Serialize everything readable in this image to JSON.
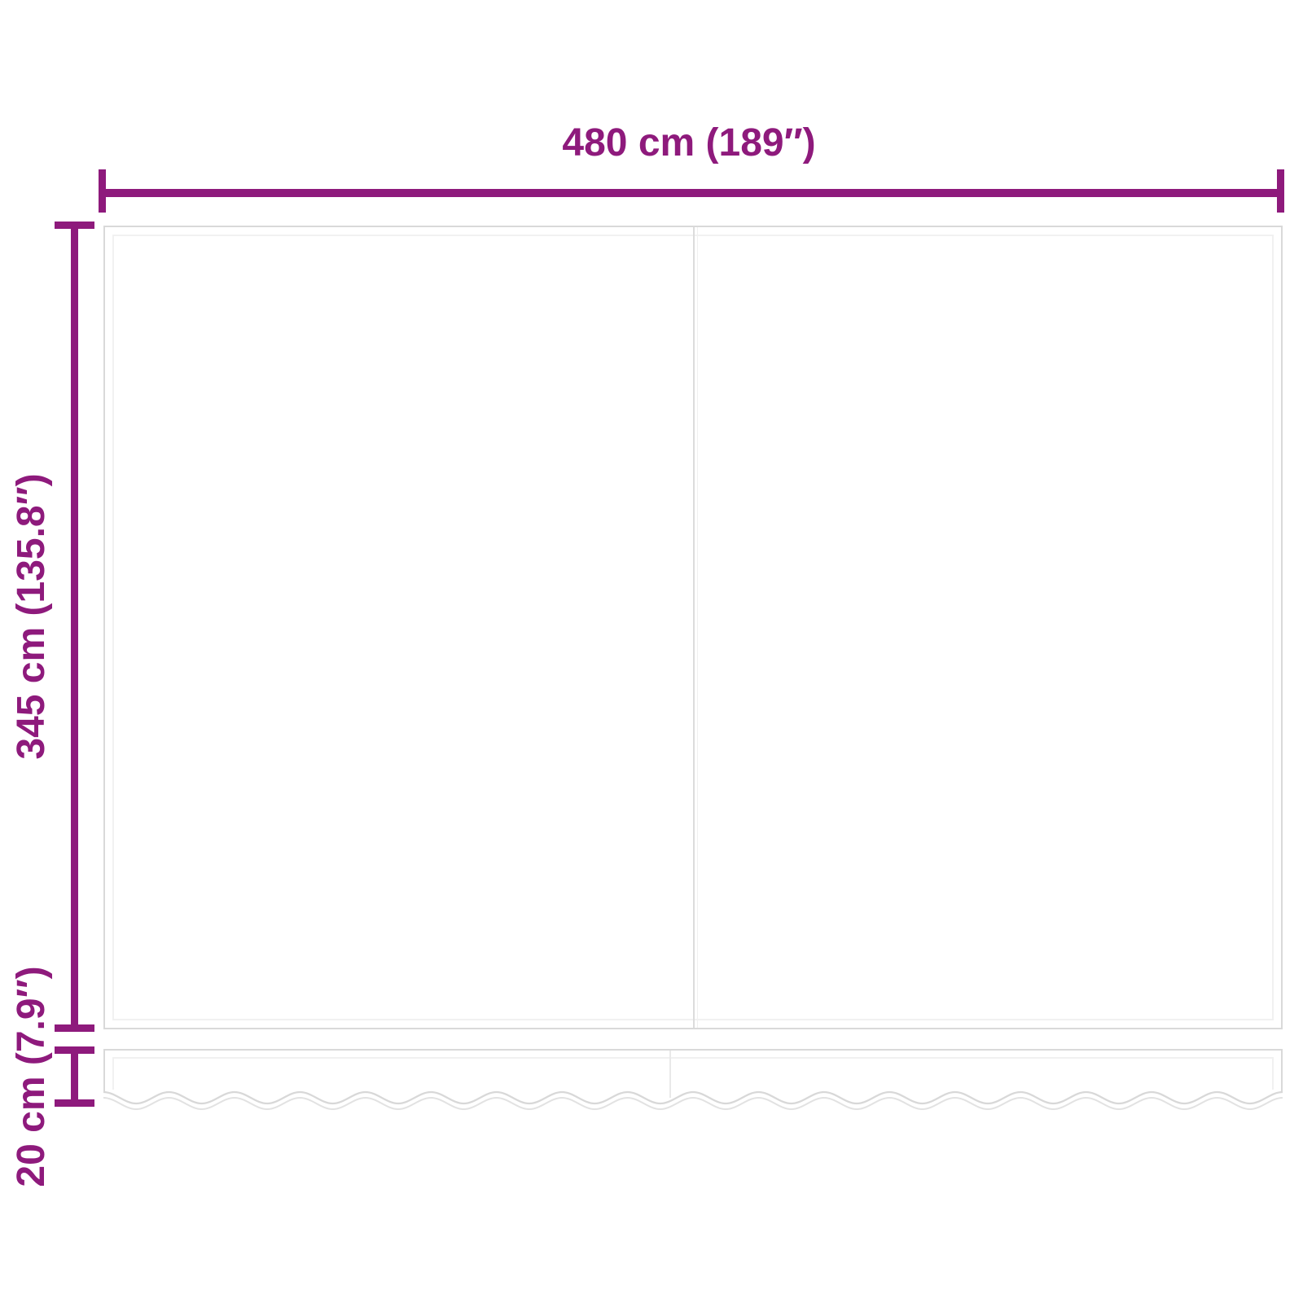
{
  "diagram": {
    "type": "awning-replacement-fabric-dimension-diagram",
    "labels": {
      "width": "480 cm (189″)",
      "height": "345 cm (135.8″)",
      "valance": "20 cm (7.9″)"
    },
    "colors": {
      "dimension": "#8E1A7C",
      "outline": "#D9D9D9",
      "outline_light": "#F1F1F1",
      "seam": "#DCDCDC",
      "seam_light": "#F1F1F1",
      "valance_seam": "#E9E9E9",
      "wave_upper": "#D8D8D8",
      "wave_lower": "#E2E2E2"
    }
  }
}
